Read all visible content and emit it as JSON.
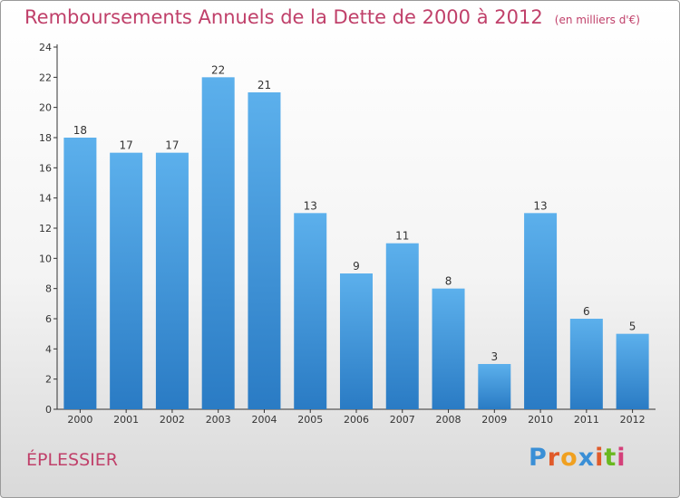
{
  "chart_data": {
    "type": "bar",
    "title": "Remboursements Annuels de la Dette de 2000 à 2012",
    "subtitle": "(en milliers d'€)",
    "categories": [
      "2000",
      "2001",
      "2002",
      "2003",
      "2004",
      "2005",
      "2006",
      "2007",
      "2008",
      "2009",
      "2010",
      "2011",
      "2012"
    ],
    "values": [
      18,
      17,
      17,
      22,
      21,
      13,
      9,
      11,
      8,
      3,
      13,
      6,
      5
    ],
    "ylim": [
      0,
      24
    ],
    "yticks": [
      0,
      2,
      4,
      6,
      8,
      10,
      12,
      14,
      16,
      18,
      20,
      22,
      24
    ],
    "grid": false,
    "bar_color": "#4a9fe0",
    "data_labels": true
  },
  "commune": "ÉPLESSIER",
  "logo": {
    "text": "Proxiti",
    "letters": [
      {
        "ch": "P",
        "color": "#3a8fd6"
      },
      {
        "ch": "r",
        "color": "#e05a2a"
      },
      {
        "ch": "o",
        "color": "#f0a020"
      },
      {
        "ch": "x",
        "color": "#3a8fd6"
      },
      {
        "ch": "i",
        "color": "#e05a2a"
      },
      {
        "ch": "t",
        "color": "#6ab820"
      },
      {
        "ch": "i",
        "color": "#d4407a"
      }
    ]
  },
  "colors": {
    "title": "#c0406a",
    "axis": "#333333"
  }
}
